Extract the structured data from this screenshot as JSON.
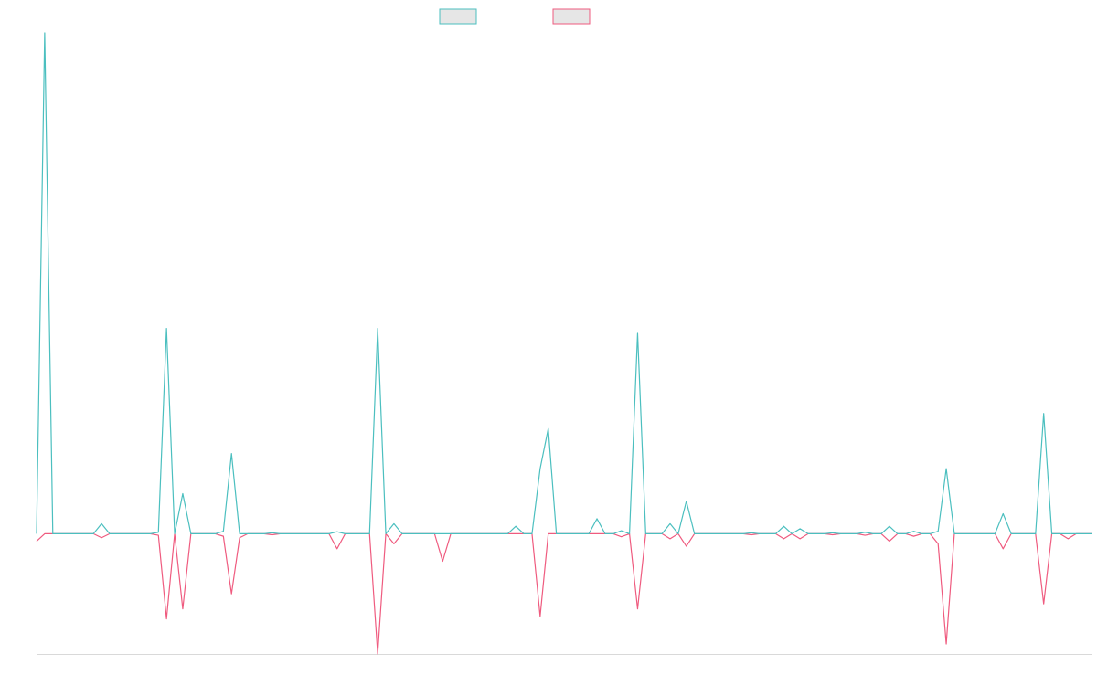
{
  "colors": {
    "series_a": "#4bbfbf",
    "series_b": "#ef5b7f",
    "swatch_fill": "#e6e6e6",
    "axis": "#d9d9d9",
    "background": "#ffffff"
  },
  "chart_data": {
    "type": "line",
    "title": "",
    "xlabel": "",
    "ylabel": "",
    "grid": false,
    "legend_position": "top-center",
    "ylim": [
      -0.24,
      1.0
    ],
    "x": [
      0,
      1,
      2,
      3,
      4,
      5,
      6,
      7,
      8,
      9,
      10,
      11,
      12,
      13,
      14,
      15,
      16,
      17,
      18,
      19,
      20,
      21,
      22,
      23,
      24,
      25,
      26,
      27,
      28,
      29,
      30,
      31,
      32,
      33,
      34,
      35,
      36,
      37,
      38,
      39,
      40,
      41,
      42,
      43,
      44,
      45,
      46,
      47,
      48,
      49,
      50,
      51,
      52,
      53,
      54,
      55,
      56,
      57,
      58,
      59,
      60,
      61,
      62,
      63,
      64,
      65,
      66,
      67,
      68,
      69,
      70,
      71,
      72,
      73,
      74,
      75,
      76,
      77,
      78,
      79,
      80,
      81,
      82,
      83,
      84,
      85,
      86,
      87,
      88,
      89,
      90,
      91,
      92,
      93,
      94,
      95,
      96,
      97,
      98,
      99,
      100,
      101,
      102,
      103,
      104,
      105,
      106,
      107,
      108,
      109,
      110,
      111,
      112,
      113,
      114,
      115,
      116,
      117,
      118,
      119,
      120,
      121,
      122,
      123,
      124,
      125,
      126,
      127,
      128,
      129,
      130
    ],
    "series": [
      {
        "values": [
          0,
          1.0,
          0,
          0,
          0,
          0,
          0,
          0,
          0.02,
          0,
          0,
          0,
          0,
          0,
          0,
          0.003,
          0.41,
          0,
          0.08,
          0,
          0,
          0,
          0,
          0.005,
          0.16,
          0,
          0,
          0,
          0,
          0.002,
          0,
          0,
          0,
          0,
          0,
          0,
          0,
          0.004,
          0,
          0,
          0,
          0,
          0.41,
          0,
          0.02,
          0,
          0,
          0,
          0,
          0,
          0,
          0,
          0,
          0,
          0,
          0,
          0,
          0,
          0,
          0.015,
          0,
          0,
          0.13,
          0.21,
          0,
          0,
          0,
          0,
          0,
          0.03,
          0,
          0,
          0.006,
          0,
          0.4,
          0,
          0,
          0,
          0.02,
          0,
          0.065,
          0,
          0,
          0,
          0,
          0,
          0,
          0,
          0.002,
          0,
          0,
          0,
          0.015,
          0,
          0.01,
          0,
          0,
          0,
          0.002,
          0,
          0,
          0,
          0.003,
          0,
          0,
          0.015,
          0,
          0,
          0.005,
          0,
          0,
          0.005,
          0.13,
          0,
          0,
          0,
          0,
          0,
          0,
          0.04,
          0,
          0,
          0,
          0,
          0.24,
          0,
          0,
          0,
          0,
          0,
          0
        ]
      },
      {
        "values": [
          -0.015,
          0,
          0,
          0,
          0,
          0,
          0,
          0,
          -0.008,
          0,
          0,
          0,
          0,
          0,
          0,
          -0.003,
          -0.17,
          0,
          -0.15,
          0,
          0,
          0,
          0,
          -0.005,
          -0.12,
          -0.008,
          0,
          0,
          0,
          -0.002,
          0,
          0,
          0,
          0,
          0,
          0,
          0,
          -0.03,
          0,
          0,
          0,
          0,
          -0.24,
          0,
          -0.02,
          0,
          0,
          0,
          0,
          0,
          -0.055,
          0,
          0,
          0,
          0,
          0,
          0,
          0,
          0,
          0,
          0,
          0,
          -0.165,
          0,
          0,
          0,
          0,
          0,
          0,
          0,
          0,
          0,
          -0.006,
          0,
          -0.15,
          0,
          0,
          0,
          -0.01,
          0,
          -0.025,
          0,
          0,
          0,
          0,
          0,
          0,
          0,
          -0.002,
          0,
          0,
          0,
          -0.01,
          0,
          -0.01,
          0,
          0,
          0,
          -0.002,
          0,
          0,
          0,
          -0.003,
          0,
          0,
          -0.015,
          0,
          0,
          -0.005,
          0,
          0,
          -0.02,
          -0.22,
          0,
          0,
          0,
          0,
          0,
          0,
          -0.03,
          0,
          0,
          0,
          0,
          -0.14,
          0,
          0,
          -0.01,
          0,
          0,
          0
        ]
      }
    ]
  }
}
